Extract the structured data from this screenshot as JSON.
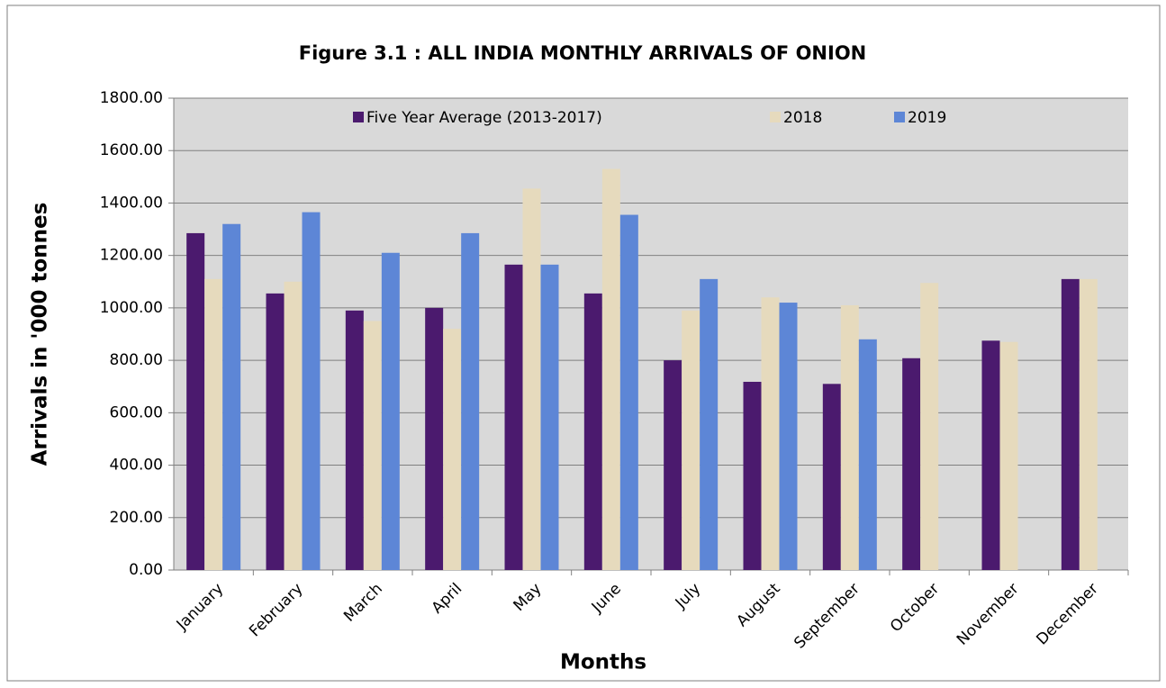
{
  "chart_data": {
    "type": "bar",
    "title": "Figure 3.1 : ALL INDIA MONTHLY ARRIVALS OF ONION",
    "x_label": "Months",
    "y_label": "Arrivals in '000 tonnes",
    "categories": [
      "January",
      "February",
      "March",
      "April",
      "May",
      "June",
      "July",
      "August",
      "September",
      "October",
      "November",
      "December"
    ],
    "series": [
      {
        "name": "Five Year Average  (2013-2017)",
        "color": "#4b1a6e",
        "values": [
          1285,
          1055,
          990,
          1000,
          1165,
          1055,
          800,
          718,
          710,
          808,
          875,
          1110
        ]
      },
      {
        "name": "2018",
        "color": "#e6dabd",
        "values": [
          1110,
          1100,
          950,
          920,
          1455,
          1530,
          990,
          1040,
          1010,
          1095,
          870,
          1110
        ]
      },
      {
        "name": "2019",
        "color": "#5d86d6",
        "values": [
          1320,
          1365,
          1210,
          1285,
          1165,
          1355,
          1110,
          1020,
          880,
          null,
          null,
          null
        ]
      }
    ],
    "ylim": [
      0,
      1800
    ],
    "yticks": [
      {
        "value": 0,
        "label": "0.00"
      },
      {
        "value": 200,
        "label": "200.00"
      },
      {
        "value": 400,
        "label": "400.00"
      },
      {
        "value": 600,
        "label": "600.00"
      },
      {
        "value": 800,
        "label": "800.00"
      },
      {
        "value": 1000,
        "label": "1000.00"
      },
      {
        "value": 1200,
        "label": "1200.00"
      },
      {
        "value": 1400,
        "label": "1400.00"
      },
      {
        "value": 1600,
        "label": "1600.00"
      },
      {
        "value": 1800,
        "label": "1800.00"
      }
    ],
    "grid": true,
    "legend": "top"
  }
}
